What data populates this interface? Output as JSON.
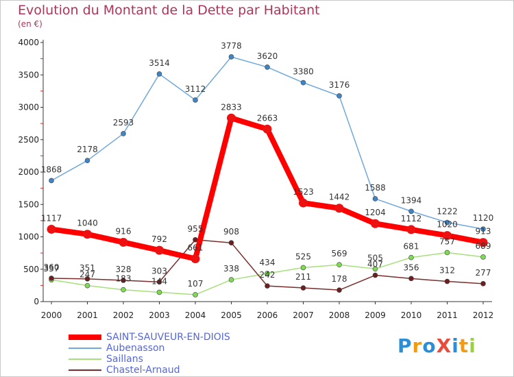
{
  "title": "Evolution du Montant de la Dette par Habitant",
  "subtitle": "(en €)",
  "brand": {
    "text": "ProXiti",
    "colors": [
      "#2a8fd8",
      "#f39c12",
      "#2a8fd8",
      "#e74c3c",
      "#2a8fd8",
      "#f39c12",
      "#9bd13a"
    ]
  },
  "chart_data": {
    "type": "line",
    "x": [
      "2000",
      "2001",
      "2002",
      "2003",
      "2004",
      "2005",
      "2006",
      "2007",
      "2008",
      "2009",
      "2010",
      "2011",
      "2012"
    ],
    "ylim": [
      0,
      4000
    ],
    "yticks": [
      0,
      500,
      1000,
      1500,
      2000,
      2500,
      3000,
      3500,
      4000
    ],
    "grid": false,
    "legend": "bottom-left",
    "series": [
      {
        "name": "SAINT-SAUVEUR-EN-DIOIS",
        "color": "#ff0000",
        "marker": "#ee1111",
        "values": [
          1117,
          1040,
          916,
          792,
          661,
          2833,
          2663,
          1523,
          1442,
          1204,
          1112,
          1020,
          913
        ]
      },
      {
        "name": "Aubenasson",
        "color": "#6fa8dc",
        "marker": "#3d85c6",
        "values": [
          1868,
          2178,
          2593,
          3514,
          3112,
          3778,
          3620,
          3380,
          3176,
          1588,
          1394,
          1222,
          1120
        ]
      },
      {
        "name": "Saillans",
        "color": "#a6e07a",
        "marker": "#7ed957",
        "values": [
          337,
          247,
          183,
          144,
          107,
          338,
          434,
          525,
          569,
          505,
          681,
          757,
          689
        ]
      },
      {
        "name": "Chastel-Arnaud",
        "color": "#7a2d2d",
        "marker": "#6b1f1f",
        "values": [
          360,
          351,
          328,
          303,
          955,
          908,
          242,
          211,
          178,
          407,
          356,
          312,
          277
        ]
      }
    ]
  }
}
